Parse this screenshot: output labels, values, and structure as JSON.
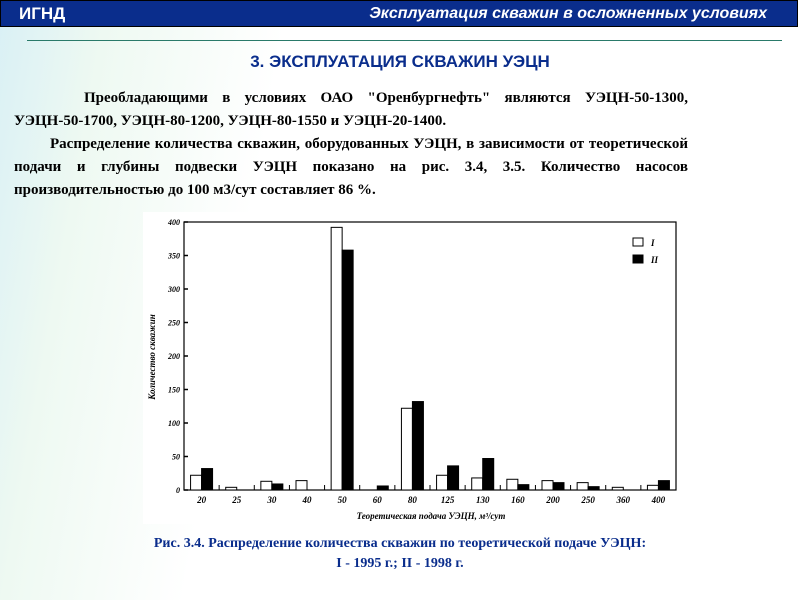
{
  "header": {
    "left": "ИГНД",
    "right": "Эксплуатация скважин в осложненных условиях"
  },
  "title": "3. ЭКСПЛУАТАЦИЯ СКВАЖИН УЭЦН",
  "paragraphs": [
    "Преобладающими в условиях ОАО \"Оренбургнефть\" являются УЭЦН-50-1300, УЭЦН-50-1700, УЭЦН-80-1200, УЭЦН-80-1550 и УЭЦН-20-1400.",
    "Распределение количества скважин, оборудованных УЭЦН, в зависимости от теоретической подачи и глубины подвески УЭЦН показано на рис. 3.4, 3.5. Количество насосов производительностью до 100 м3/сут составляет 86 %."
  ],
  "caption": {
    "line1": "Рис. 3.4. Распределение количества скважин по теоретической подаче УЭЦН:",
    "line2": "I - 1995 г.; II - 1998 г."
  },
  "chart_data": {
    "type": "bar",
    "xlabel": "Теоретическая подача УЭЦН, м³/сут",
    "ylabel": "Количество скважин",
    "ylim": [
      0,
      400
    ],
    "yticks": [
      0,
      50,
      100,
      150,
      200,
      250,
      300,
      350,
      400
    ],
    "categories": [
      "20",
      "25",
      "30",
      "40",
      "50",
      "60",
      "80",
      "125",
      "130",
      "160",
      "200",
      "250",
      "360",
      "400"
    ],
    "series": [
      {
        "name": "I",
        "color": "#ffffff",
        "values": [
          22,
          4,
          13,
          14,
          392,
          0,
          122,
          22,
          18,
          16,
          14,
          11,
          4,
          7
        ]
      },
      {
        "name": "II",
        "color": "#000000",
        "values": [
          32,
          0,
          9,
          0,
          358,
          6,
          132,
          36,
          47,
          8,
          11,
          5,
          0,
          14
        ]
      }
    ],
    "legend": "top-right",
    "grid": false
  }
}
